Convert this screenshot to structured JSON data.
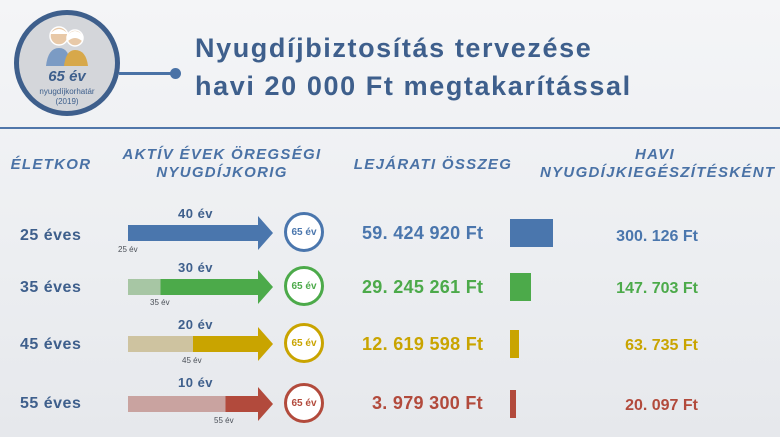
{
  "badge": {
    "age": "65 év",
    "subtitle": "nyugdíjkorhatár",
    "year": "(2019)"
  },
  "title": {
    "line1": "Nyugdíjbiztosítás tervezése",
    "line2": "havi 20 000 Ft megtakarítással"
  },
  "headers": {
    "age": "ÉLETKOR",
    "active_years": [
      "AKTÍV ÉVEK ÖREGSÉGI",
      "NYUGDÍJKORIG"
    ],
    "maturity": "LEJÁRATI ÖSSZEG",
    "monthly": [
      "HAVI",
      "NYUGDÍJKIEGÉSZÍTÉSKÉNT"
    ]
  },
  "colors": {
    "primary": "#3e5f8c",
    "row1": "#4a76ad",
    "row2": "#4caa4a",
    "row3": "#c9a400",
    "row4": "#b24a3c"
  },
  "rows": [
    {
      "age_label": "25 éves",
      "years_label": "40 év",
      "start_label": "25 év",
      "marker": "65 év",
      "amount": "59. 424 920 Ft",
      "monthly": "300. 126 Ft",
      "active_fraction": 1.0,
      "maturity_value": 59424920,
      "color": "#4a76ad",
      "pale": "#a9bfd9"
    },
    {
      "age_label": "35 éves",
      "years_label": "30 év",
      "start_label": "35 év",
      "marker": "65 év",
      "amount": "29. 245 261 Ft",
      "monthly": "147. 703 Ft",
      "active_fraction": 0.75,
      "maturity_value": 29245261,
      "color": "#4caa4a",
      "pale": "#a7c6a4"
    },
    {
      "age_label": "45 éves",
      "years_label": "20 év",
      "start_label": "45 év",
      "marker": "65 év",
      "amount": "12. 619 598 Ft",
      "monthly": "63. 735 Ft",
      "active_fraction": 0.5,
      "maturity_value": 12619598,
      "color": "#c9a400",
      "pale": "#cec3a0"
    },
    {
      "age_label": "55 éves",
      "years_label": "10 év",
      "start_label": "55 év",
      "marker": "65 év",
      "amount": "3. 979 300 Ft",
      "monthly": "20. 097 Ft",
      "active_fraction": 0.25,
      "maturity_value": 3979300,
      "color": "#b24a3c",
      "pale": "#c9a3a0"
    }
  ]
}
